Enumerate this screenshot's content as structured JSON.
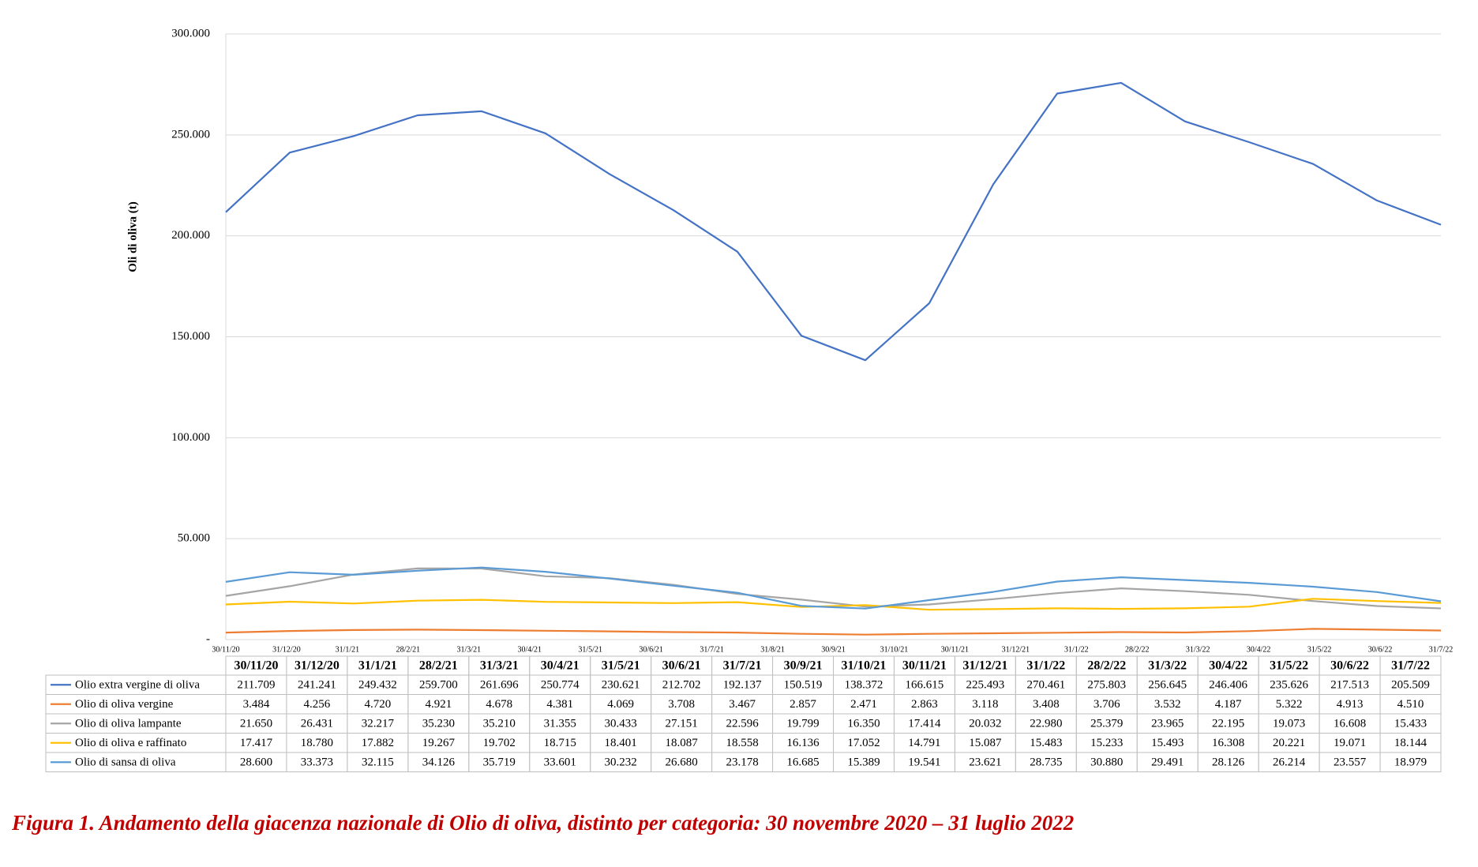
{
  "chart_data": {
    "type": "line",
    "y_label": "Oli di oliva (t)",
    "axis_labels": [
      "30/11/20",
      "31/12/20",
      "31/1/21",
      "28/2/21",
      "31/3/21",
      "30/4/21",
      "31/5/21",
      "30/6/21",
      "31/7/21",
      "31/8/21",
      "30/9/21",
      "31/10/21",
      "30/11/21",
      "31/12/21",
      "31/1/22",
      "28/2/22",
      "31/3/22",
      "30/4/22",
      "31/5/22",
      "30/6/22",
      "31/7/22"
    ],
    "categories": [
      "30/11/20",
      "31/12/20",
      "31/1/21",
      "28/2/21",
      "31/3/21",
      "30/4/21",
      "31/5/21",
      "30/6/21",
      "31/7/21",
      "30/9/21",
      "31/10/21",
      "30/11/21",
      "31/12/21",
      "31/1/22",
      "28/2/22",
      "31/3/22",
      "30/4/22",
      "31/5/22",
      "30/6/22",
      "31/7/22"
    ],
    "ylim": [
      0,
      300000
    ],
    "yticks": [
      {
        "value": 0,
        "label": "-"
      },
      {
        "value": 50000,
        "label": "50.000"
      },
      {
        "value": 100000,
        "label": "100.000"
      },
      {
        "value": 150000,
        "label": "150.000"
      },
      {
        "value": 200000,
        "label": "200.000"
      },
      {
        "value": 250000,
        "label": "250.000"
      },
      {
        "value": 300000,
        "label": "300.000"
      }
    ],
    "grid": true,
    "series": [
      {
        "name": "Olio extra vergine di oliva",
        "color": "#4472c4",
        "values": [
          211709,
          241241,
          249432,
          259700,
          261696,
          250774,
          230621,
          212702,
          192137,
          150519,
          138372,
          166615,
          225493,
          270461,
          275803,
          256645,
          246406,
          235626,
          217513,
          205509
        ],
        "value_labels": [
          "211.709",
          "241.241",
          "249.432",
          "259.700",
          "261.696",
          "250.774",
          "230.621",
          "212.702",
          "192.137",
          "150.519",
          "138.372",
          "166.615",
          "225.493",
          "270.461",
          "275.803",
          "256.645",
          "246.406",
          "235.626",
          "217.513",
          "205.509"
        ]
      },
      {
        "name": "Olio di oliva vergine",
        "color": "#ed7d31",
        "values": [
          3484,
          4256,
          4720,
          4921,
          4678,
          4381,
          4069,
          3708,
          3467,
          2857,
          2471,
          2863,
          3118,
          3408,
          3706,
          3532,
          4187,
          5322,
          4913,
          4510
        ],
        "value_labels": [
          "3.484",
          "4.256",
          "4.720",
          "4.921",
          "4.678",
          "4.381",
          "4.069",
          "3.708",
          "3.467",
          "2.857",
          "2.471",
          "2.863",
          "3.118",
          "3.408",
          "3.706",
          "3.532",
          "4.187",
          "5.322",
          "4.913",
          "4.510"
        ]
      },
      {
        "name": "Olio di oliva lampante",
        "color": "#a5a5a5",
        "values": [
          21650,
          26431,
          32217,
          35230,
          35210,
          31355,
          30433,
          27151,
          22596,
          19799,
          16350,
          17414,
          20032,
          22980,
          25379,
          23965,
          22195,
          19073,
          16608,
          15433
        ],
        "value_labels": [
          "21.650",
          "26.431",
          "32.217",
          "35.230",
          "35.210",
          "31.355",
          "30.433",
          "27.151",
          "22.596",
          "19.799",
          "16.350",
          "17.414",
          "20.032",
          "22.980",
          "25.379",
          "23.965",
          "22.195",
          "19.073",
          "16.608",
          "15.433"
        ]
      },
      {
        "name": "Olio di oliva e raffinato",
        "color": "#ffc000",
        "values": [
          17417,
          18780,
          17882,
          19267,
          19702,
          18715,
          18401,
          18087,
          18558,
          16136,
          17052,
          14791,
          15087,
          15483,
          15233,
          15493,
          16308,
          20221,
          19071,
          18144
        ],
        "value_labels": [
          "17.417",
          "18.780",
          "17.882",
          "19.267",
          "19.702",
          "18.715",
          "18.401",
          "18.087",
          "18.558",
          "16.136",
          "17.052",
          "14.791",
          "15.087",
          "15.483",
          "15.233",
          "15.493",
          "16.308",
          "20.221",
          "19.071",
          "18.144"
        ]
      },
      {
        "name": "Olio di sansa di oliva",
        "color": "#5b9bd5",
        "values": [
          28600,
          33373,
          32115,
          34126,
          35719,
          33601,
          30232,
          26680,
          23178,
          16685,
          15389,
          19541,
          23621,
          28735,
          30880,
          29491,
          28126,
          26214,
          23557,
          18979
        ],
        "value_labels": [
          "28.600",
          "33.373",
          "32.115",
          "34.126",
          "35.719",
          "33.601",
          "30.232",
          "26.680",
          "23.178",
          "16.685",
          "15.389",
          "19.541",
          "23.621",
          "28.735",
          "30.880",
          "29.491",
          "28.126",
          "26.214",
          "23.557",
          "18.979"
        ]
      }
    ],
    "caption": "Figura 1. Andamento della giacenza nazionale di Olio di oliva, distinto per categoria: 30 novembre 2020 – 31 luglio 2022"
  }
}
